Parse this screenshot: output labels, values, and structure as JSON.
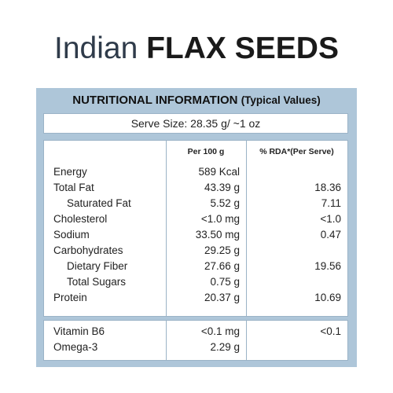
{
  "title": {
    "part1": "Indian",
    "part2": "FLAX SEEDS"
  },
  "header": {
    "main": "NUTRITIONAL INFORMATION",
    "sub": "(Typical Values)"
  },
  "serve_size": "Serve Size: 28.35 g/ ~1 oz",
  "columns": {
    "per100": "Per 100 g",
    "rda": "% RDA*(Per Serve)"
  },
  "rows": [
    {
      "name": "Energy",
      "per100": "589 Kcal",
      "rda": ""
    },
    {
      "name": "Total Fat",
      "per100": "43.39 g",
      "rda": "18.36"
    },
    {
      "name": "Saturated Fat",
      "per100": "5.52 g",
      "rda": "7.11"
    },
    {
      "name": "Cholesterol",
      "per100": "<1.0 mg",
      "rda": "<1.0"
    },
    {
      "name": "Sodium",
      "per100": "33.50 mg",
      "rda": "0.47"
    },
    {
      "name": "Carbohydrates",
      "per100": "29.25 g",
      "rda": ""
    },
    {
      "name": "Dietary Fiber",
      "per100": "27.66 g",
      "rda": "19.56"
    },
    {
      "name": "Total Sugars",
      "per100": "0.75 g",
      "rda": ""
    },
    {
      "name": "Protein",
      "per100": "20.37 g",
      "rda": "10.69"
    }
  ],
  "rows2": [
    {
      "name": "Vitamin B6",
      "per100": "<0.1 mg",
      "rda": "<0.1"
    },
    {
      "name": "Omega-3",
      "per100": "2.29 g",
      "rda": ""
    }
  ],
  "colors": {
    "panel": "#aec6d9",
    "border": "#9bb3c7",
    "title": "#2f3b4a"
  }
}
